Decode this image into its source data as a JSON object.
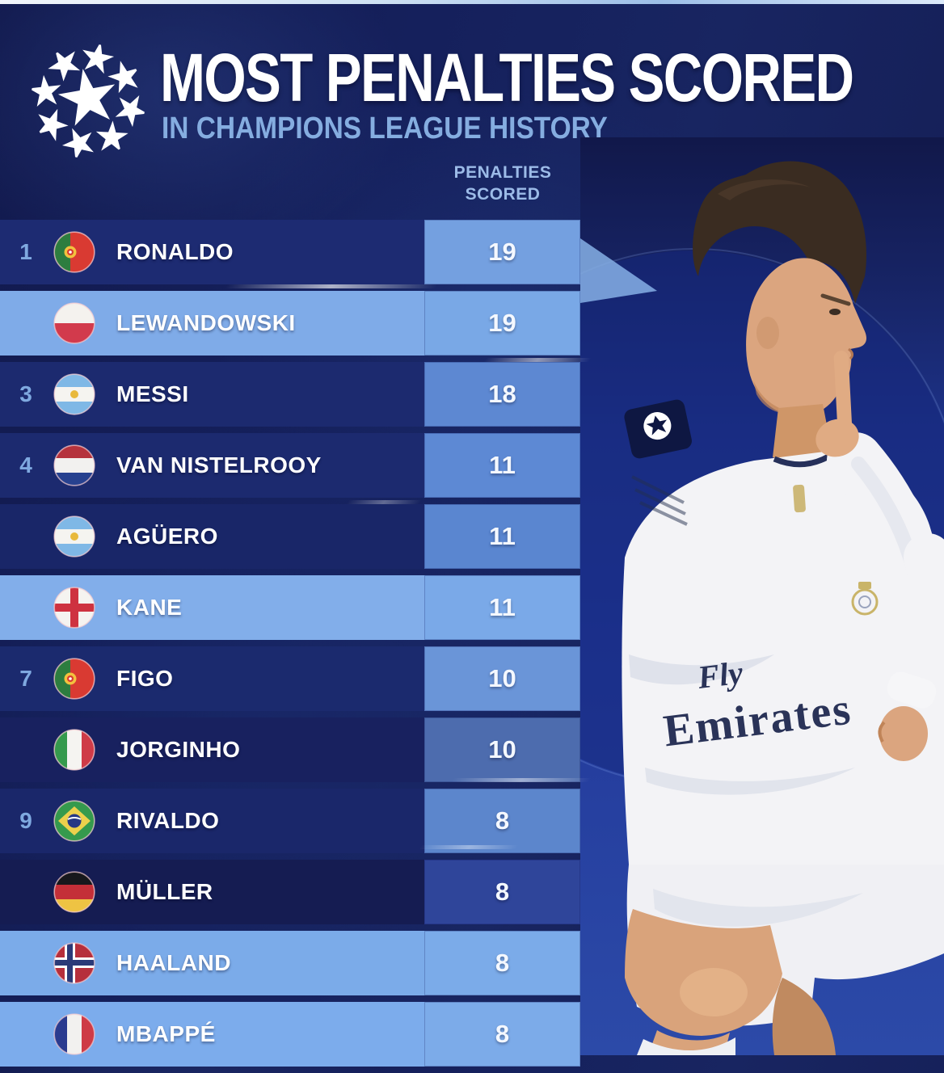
{
  "header": {
    "logo_icon": "ucl-starball-icon",
    "title": "MOST PENALTIES SCORED",
    "subtitle": "IN CHAMPIONS LEAGUE HISTORY"
  },
  "table": {
    "value_header_line1": "PENALTIES",
    "value_header_line2": "SCORED",
    "rows": [
      {
        "rank": "1",
        "player": "RONALDO",
        "flag": "portugal",
        "value": "19",
        "tone": "dark",
        "row_bg": "#1d2b72",
        "cell_bg": "#74a0e0"
      },
      {
        "rank": "",
        "player": "LEWANDOWSKI",
        "flag": "poland",
        "value": "19",
        "tone": "light",
        "row_bg": "#7fabe8",
        "cell_bg": "#79a8e6"
      },
      {
        "rank": "3",
        "player": "MESSI",
        "flag": "argentina",
        "value": "18",
        "tone": "dark",
        "row_bg": "#1c2a6f",
        "cell_bg": "#5d88d2"
      },
      {
        "rank": "4",
        "player": "VAN NISTELROOY",
        "flag": "netherlands",
        "value": "11",
        "tone": "dark",
        "row_bg": "#1c2a6f",
        "cell_bg": "#5d89d4"
      },
      {
        "rank": "",
        "player": "AGÜERO",
        "flag": "argentina",
        "value": "11",
        "tone": "dark",
        "row_bg": "#192668",
        "cell_bg": "#5a86d0"
      },
      {
        "rank": "",
        "player": "KANE",
        "flag": "england",
        "value": "11",
        "tone": "light",
        "row_bg": "#82aeea",
        "cell_bg": "#7aa9e8"
      },
      {
        "rank": "7",
        "player": "FIGO",
        "flag": "portugal",
        "value": "10",
        "tone": "dark",
        "row_bg": "#1b2a6e",
        "cell_bg": "#6a95d8"
      },
      {
        "rank": "",
        "player": "JORGINHO",
        "flag": "italy",
        "value": "10",
        "tone": "dark",
        "row_bg": "#18215f",
        "cell_bg": "#4d6cae"
      },
      {
        "rank": "9",
        "player": "RIVALDO",
        "flag": "brazil",
        "value": "8",
        "tone": "dark",
        "row_bg": "#1a276a",
        "cell_bg": "#5c86cc"
      },
      {
        "rank": "",
        "player": "MÜLLER",
        "flag": "germany",
        "value": "8",
        "tone": "dark",
        "row_bg": "#151c52",
        "cell_bg": "#2f459a"
      },
      {
        "rank": "",
        "player": "HAALAND",
        "flag": "norway",
        "value": "8",
        "tone": "light",
        "row_bg": "#7babe9",
        "cell_bg": "#7babe9"
      },
      {
        "rank": "",
        "player": "MBAPPÉ",
        "flag": "france",
        "value": "8",
        "tone": "light",
        "row_bg": "#7cacec",
        "cell_bg": "#7cabe9"
      }
    ]
  },
  "photo": {
    "subject_icon": "cristiano-ronaldo-celebration-photo",
    "jersey_sponsor_line1": "Fly",
    "jersey_sponsor_line2": "Emirates"
  },
  "colors": {
    "background_navy": "#15205c",
    "dark_row": "#1c2a6f",
    "light_row": "#7fabe8",
    "value_cell_medium": "#5d88d2",
    "rank_text": "#7fa9e0",
    "subtitle_blue": "#85ade0",
    "column_header_blue": "#9cbbe8",
    "photo_background_blue": "#1e3490",
    "title_white": "#ffffff"
  }
}
